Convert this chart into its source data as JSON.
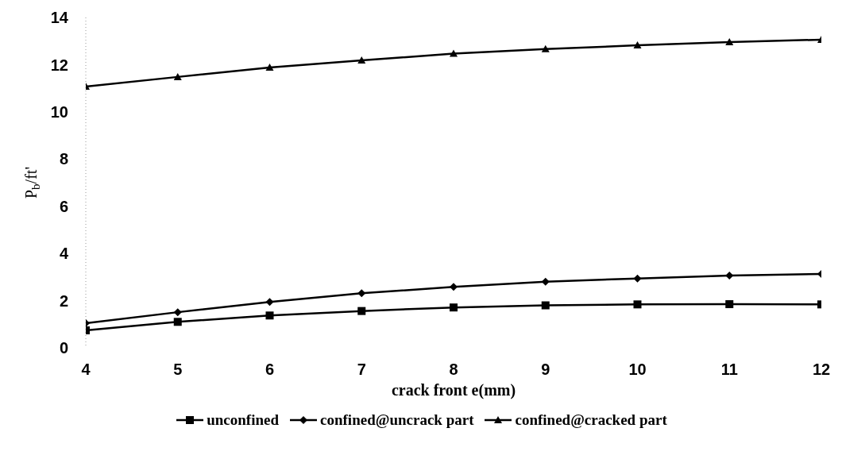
{
  "chart_data": {
    "type": "line",
    "xlabel": "crack front e(mm)",
    "ylabel": "P$_{b}$/ft'",
    "x": [
      4,
      5,
      6,
      7,
      8,
      9,
      10,
      11,
      12
    ],
    "xlim": [
      4,
      12
    ],
    "xticks": [
      4,
      5,
      6,
      7,
      8,
      9,
      10,
      11,
      12
    ],
    "ylim": [
      0,
      14
    ],
    "yticks": [
      0,
      2,
      4,
      6,
      8,
      10,
      12,
      14
    ],
    "grid": false,
    "legend": "bottom",
    "series": [
      {
        "name": "unconfined",
        "color": "#000000",
        "marker": "square",
        "values": [
          0.74,
          1.1,
          1.37,
          1.56,
          1.71,
          1.8,
          1.84,
          1.85,
          1.84
        ]
      },
      {
        "name": "confined@uncrack part",
        "color": "#000000",
        "marker": "diamond",
        "values": [
          1.04,
          1.51,
          1.94,
          2.31,
          2.58,
          2.8,
          2.94,
          3.06,
          3.13
        ]
      },
      {
        "name": "confined@cracked part",
        "color": "#000000",
        "marker": "triangle",
        "values": [
          11.07,
          11.48,
          11.88,
          12.18,
          12.47,
          12.66,
          12.82,
          12.96,
          13.06
        ]
      }
    ]
  }
}
